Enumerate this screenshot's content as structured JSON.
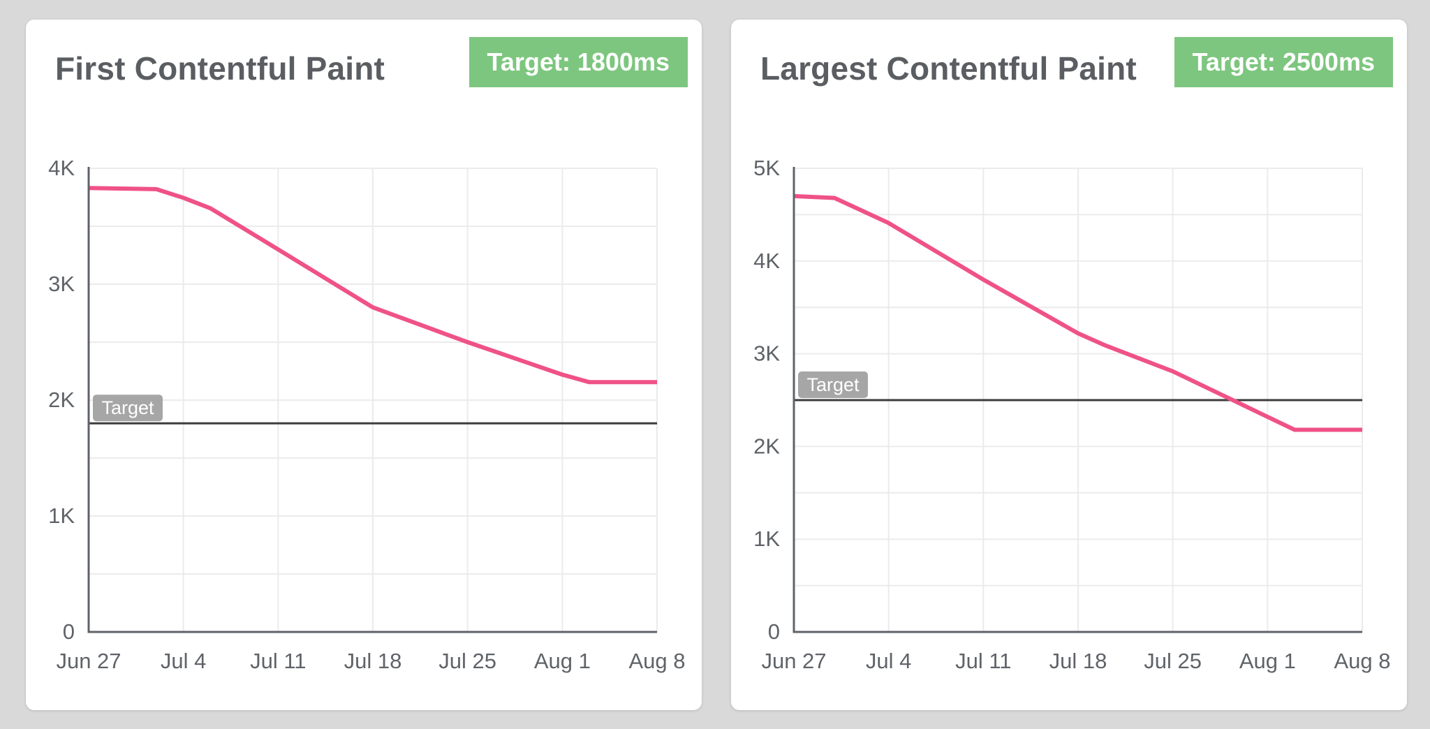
{
  "colors": {
    "page_bg": "#d9d9d9",
    "card_bg": "#ffffff",
    "title_text": "#5a5d61",
    "badge_bg": "#7dc67f",
    "badge_text": "#ffffff",
    "line": "#ef5287",
    "grid": "#ebebeb",
    "axis": "#5f6368",
    "tick_text": "#5f6368",
    "target_line": "#3d3d3d",
    "target_badge_bg": "#9e9e9e",
    "target_badge_text": "#ffffff"
  },
  "chart_data": [
    {
      "type": "line",
      "title": "First Contentful Paint",
      "target_badge": "Target: 1800ms",
      "unit": "ms",
      "ylim": [
        0,
        4000
      ],
      "y_grid_step": 500,
      "grid": true,
      "legend_position": "none",
      "y_ticks": [
        {
          "v": 0,
          "label": "0"
        },
        {
          "v": 1000,
          "label": "1K"
        },
        {
          "v": 2000,
          "label": "2K"
        },
        {
          "v": 3000,
          "label": "3K"
        },
        {
          "v": 4000,
          "label": "4K"
        }
      ],
      "xlim_days": [
        0,
        42
      ],
      "x_ticks": [
        {
          "day": 0,
          "label": "Jun 27"
        },
        {
          "day": 7,
          "label": "Jul 4"
        },
        {
          "day": 14,
          "label": "Jul 11"
        },
        {
          "day": 21,
          "label": "Jul 18"
        },
        {
          "day": 28,
          "label": "Jul 25"
        },
        {
          "day": 35,
          "label": "Aug 1"
        },
        {
          "day": 42,
          "label": "Aug 8"
        }
      ],
      "target": {
        "value": 1800,
        "label": "Target"
      },
      "series": [
        {
          "points": [
            [
              0,
              3830
            ],
            [
              5,
              3820
            ],
            [
              7,
              3745
            ],
            [
              9,
              3655
            ],
            [
              14,
              3300
            ],
            [
              21,
              2800
            ],
            [
              28,
              2500
            ],
            [
              35,
              2220
            ],
            [
              37,
              2155
            ],
            [
              42,
              2155
            ]
          ]
        }
      ]
    },
    {
      "type": "line",
      "title": "Largest Contentful Paint",
      "target_badge": "Target: 2500ms",
      "unit": "ms",
      "ylim": [
        0,
        5000
      ],
      "y_grid_step": 500,
      "grid": true,
      "legend_position": "none",
      "y_ticks": [
        {
          "v": 0,
          "label": "0"
        },
        {
          "v": 1000,
          "label": "1K"
        },
        {
          "v": 2000,
          "label": "2K"
        },
        {
          "v": 3000,
          "label": "3K"
        },
        {
          "v": 4000,
          "label": "4K"
        },
        {
          "v": 5000,
          "label": "5K"
        }
      ],
      "xlim_days": [
        0,
        42
      ],
      "x_ticks": [
        {
          "day": 0,
          "label": "Jun 27"
        },
        {
          "day": 7,
          "label": "Jul 4"
        },
        {
          "day": 14,
          "label": "Jul 11"
        },
        {
          "day": 21,
          "label": "Jul 18"
        },
        {
          "day": 28,
          "label": "Jul 25"
        },
        {
          "day": 35,
          "label": "Aug 1"
        },
        {
          "day": 42,
          "label": "Aug 8"
        }
      ],
      "target": {
        "value": 2500,
        "label": "Target"
      },
      "series": [
        {
          "points": [
            [
              0,
              4700
            ],
            [
              3,
              4680
            ],
            [
              7,
              4410
            ],
            [
              14,
              3800
            ],
            [
              21,
              3220
            ],
            [
              23,
              3090
            ],
            [
              28,
              2810
            ],
            [
              35,
              2320
            ],
            [
              37,
              2180
            ],
            [
              42,
              2180
            ]
          ]
        }
      ]
    }
  ]
}
